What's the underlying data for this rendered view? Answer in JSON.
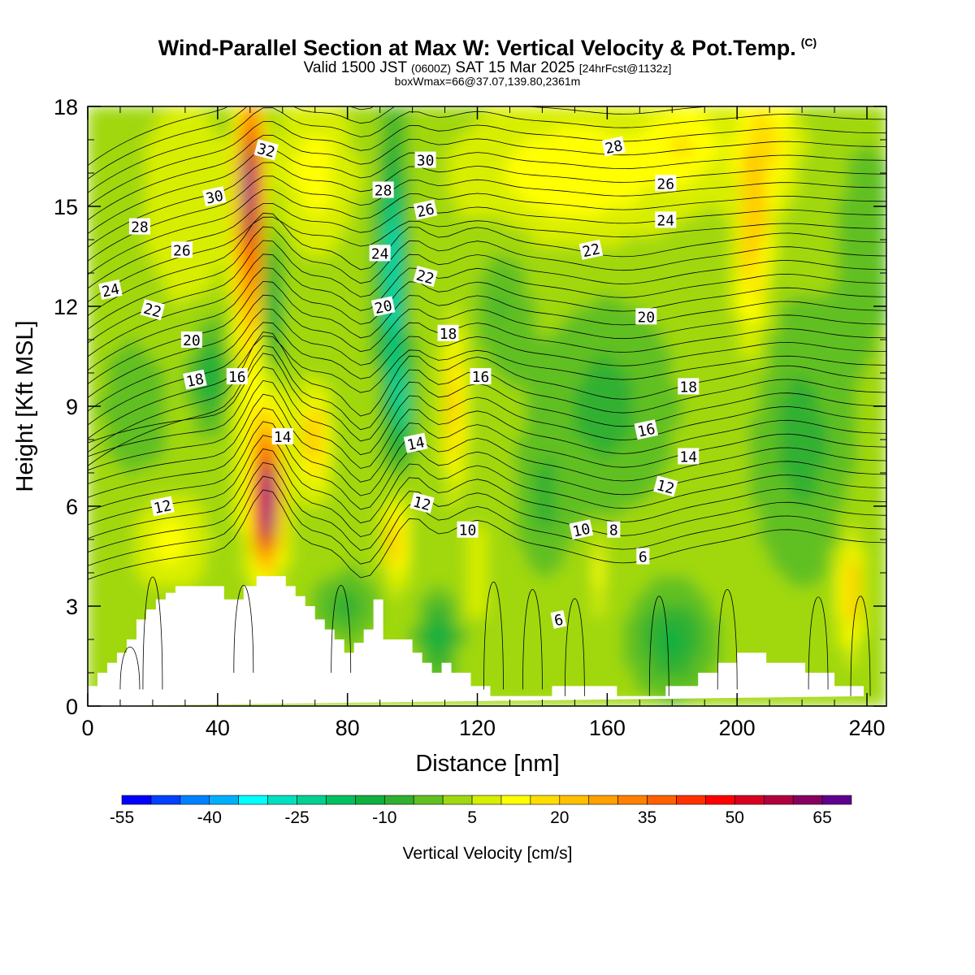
{
  "header": {
    "title": "Wind-Parallel Section at Max W: Vertical Velocity & Pot.Temp.",
    "title_mark": "(C)",
    "subtitle_a": "Valid 1500 JST",
    "subtitle_b": "(0600Z)",
    "subtitle_c": "SAT 15 Mar 2025",
    "subtitle_d": "[24hrFcst@1132z]",
    "subtitle2": "boxWmax=66@37.07,139.80,2361m"
  },
  "chart_data": {
    "type": "heatmap",
    "xlabel": "Distance [nm]",
    "ylabel": "Height [Kft MSL]",
    "xlim": [
      0,
      246
    ],
    "ylim": [
      0,
      18
    ],
    "x_ticks": [
      "0",
      "40",
      "80",
      "120",
      "160",
      "200",
      "240"
    ],
    "y_ticks": [
      "0",
      "3",
      "6",
      "9",
      "12",
      "15",
      "18"
    ],
    "colorbar": {
      "label": "Vertical Velocity [cm/s]",
      "tick_labels": [
        "-55",
        "-40",
        "-25",
        "-10",
        "5",
        "20",
        "35",
        "50",
        "65"
      ],
      "levels_min": -55,
      "step": 5,
      "colors": [
        "#0000ff",
        "#0040ff",
        "#0080ff",
        "#00b0ff",
        "#00ffff",
        "#00e0c0",
        "#00d090",
        "#00c060",
        "#10b040",
        "#30b030",
        "#60c020",
        "#a0d810",
        "#d8ee00",
        "#ffff00",
        "#ffdd00",
        "#ffc000",
        "#ffa000",
        "#ff8000",
        "#ff6000",
        "#ff3000",
        "#ff0000",
        "#d80020",
        "#b00040",
        "#880060",
        "#600090"
      ]
    },
    "theta_contour_labels": [
      {
        "value": "32",
        "x": 55,
        "y": 16.7
      },
      {
        "value": "30",
        "x": 39,
        "y": 15.3
      },
      {
        "value": "28",
        "x": 16,
        "y": 14.4
      },
      {
        "value": "26",
        "x": 29,
        "y": 13.7
      },
      {
        "value": "24",
        "x": 7,
        "y": 12.5
      },
      {
        "value": "22",
        "x": 20,
        "y": 11.9
      },
      {
        "value": "20",
        "x": 32,
        "y": 11.0
      },
      {
        "value": "18",
        "x": 33,
        "y": 9.8
      },
      {
        "value": "16",
        "x": 46,
        "y": 9.9
      },
      {
        "value": "14",
        "x": 60,
        "y": 8.1
      },
      {
        "value": "12",
        "x": 23,
        "y": 6.0
      },
      {
        "value": "30",
        "x": 104,
        "y": 16.4
      },
      {
        "value": "28",
        "x": 91,
        "y": 15.5
      },
      {
        "value": "26",
        "x": 104,
        "y": 14.9
      },
      {
        "value": "24",
        "x": 90,
        "y": 13.6
      },
      {
        "value": "22",
        "x": 104,
        "y": 12.9
      },
      {
        "value": "20",
        "x": 91,
        "y": 12.0
      },
      {
        "value": "18",
        "x": 111,
        "y": 11.2
      },
      {
        "value": "16",
        "x": 121,
        "y": 9.9
      },
      {
        "value": "14",
        "x": 101,
        "y": 7.9
      },
      {
        "value": "12",
        "x": 103,
        "y": 6.1
      },
      {
        "value": "10",
        "x": 117,
        "y": 5.3
      },
      {
        "value": "28",
        "x": 162,
        "y": 16.8
      },
      {
        "value": "26",
        "x": 178,
        "y": 15.7
      },
      {
        "value": "24",
        "x": 178,
        "y": 14.6
      },
      {
        "value": "22",
        "x": 155,
        "y": 13.7
      },
      {
        "value": "20",
        "x": 172,
        "y": 11.7
      },
      {
        "value": "18",
        "x": 185,
        "y": 9.6
      },
      {
        "value": "16",
        "x": 172,
        "y": 8.3
      },
      {
        "value": "14",
        "x": 185,
        "y": 7.5
      },
      {
        "value": "12",
        "x": 178,
        "y": 6.6
      },
      {
        "value": "10",
        "x": 152,
        "y": 5.3
      },
      {
        "value": "8",
        "x": 162,
        "y": 5.3
      },
      {
        "value": "6",
        "x": 171,
        "y": 4.5
      },
      {
        "value": "6",
        "x": 145,
        "y": 2.6
      }
    ]
  }
}
